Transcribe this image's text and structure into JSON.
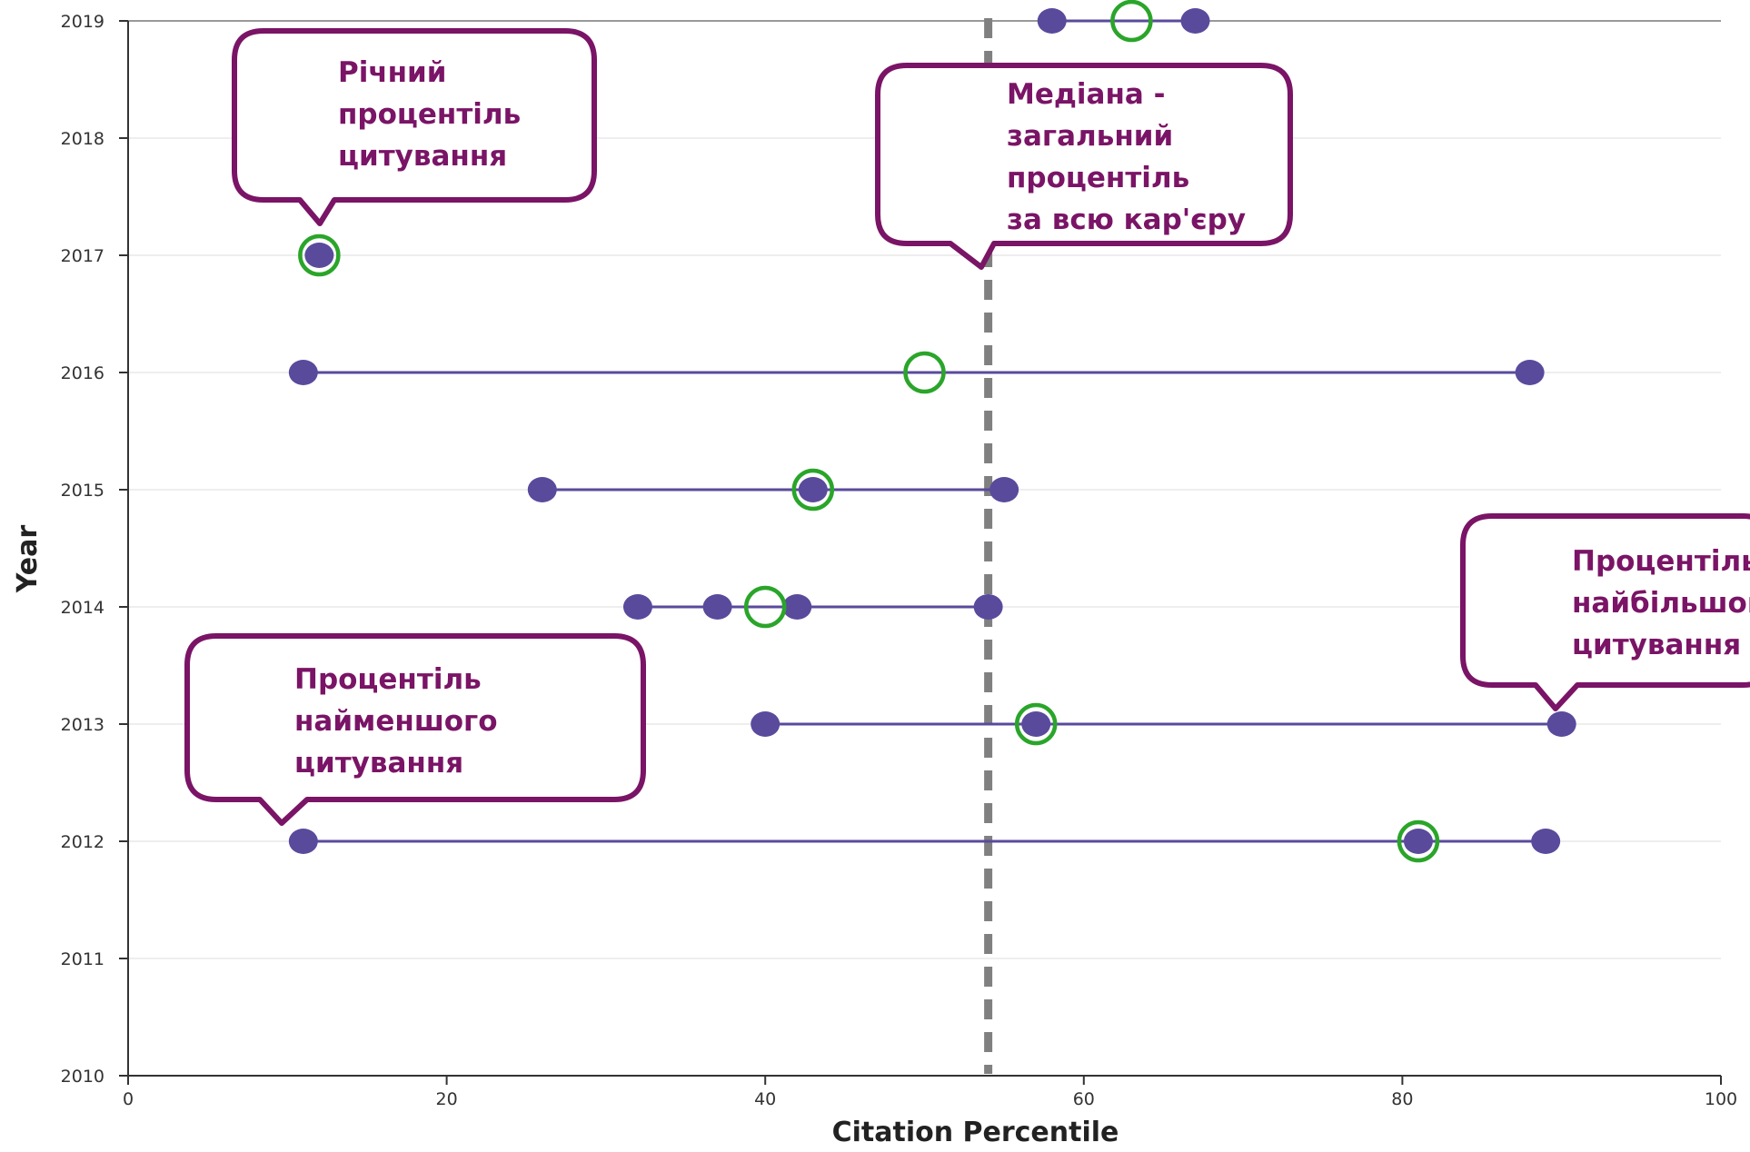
{
  "chart_data": {
    "type": "scatter",
    "xlabel": "Citation Percentile",
    "ylabel": "Year",
    "xlim": [
      0,
      100
    ],
    "ylim": [
      2010,
      2019
    ],
    "x_ticks": [
      0,
      20,
      40,
      60,
      80,
      100
    ],
    "y_ticks": [
      2010,
      2011,
      2012,
      2013,
      2014,
      2015,
      2016,
      2017,
      2018,
      2019
    ],
    "grid": true,
    "median_line": 54,
    "series": [
      {
        "year": 2019,
        "points": [
          58,
          67
        ],
        "annual": 63
      },
      {
        "year": 2017,
        "points": [
          12
        ],
        "annual": 12
      },
      {
        "year": 2016,
        "points": [
          11,
          88
        ],
        "annual": 50
      },
      {
        "year": 2015,
        "points": [
          26,
          43,
          55
        ],
        "annual": 43
      },
      {
        "year": 2014,
        "points": [
          32,
          37,
          42,
          54
        ],
        "annual": 40
      },
      {
        "year": 2013,
        "points": [
          40,
          57,
          90
        ],
        "annual": 57
      },
      {
        "year": 2012,
        "points": [
          11,
          81,
          89
        ],
        "annual": 81
      }
    ],
    "annotations": [
      {
        "lines": [
          "Річний",
          "процентіль",
          "цитування"
        ]
      },
      {
        "lines": [
          "Медіана -",
          "загальний",
          "процентіль",
          "за всю кар'єру"
        ]
      },
      {
        "lines": [
          "Процентіль",
          "найбільшого",
          "цитування"
        ]
      },
      {
        "lines": [
          "Процентіль",
          "найменшого",
          "цитування"
        ]
      }
    ],
    "colors": {
      "point": "#5a4a9c",
      "line": "#5a4a9c",
      "annual_ring": "#2aa52a",
      "median": "#808080",
      "callout": "#7a1466",
      "grid": "#e3e3e3",
      "axis": "#333333"
    }
  }
}
